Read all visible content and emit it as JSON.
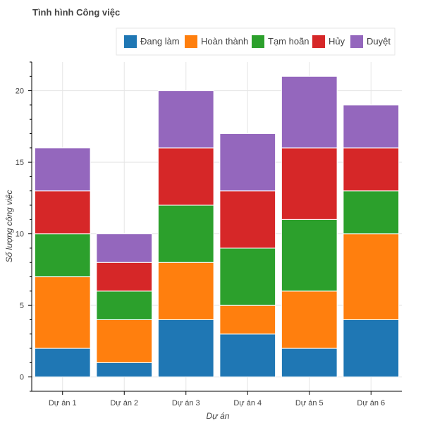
{
  "chart_data": {
    "type": "bar",
    "stacked": true,
    "title": "Tình hình Công việc",
    "xlabel": "Dự án",
    "ylabel": "Số lượng công việc",
    "categories": [
      "Dự án 1",
      "Dự án 2",
      "Dự án 3",
      "Dự án 4",
      "Dự án 5",
      "Dự án 6"
    ],
    "ylim": [
      -1,
      22
    ],
    "yticks": [
      0,
      5,
      10,
      15,
      20
    ],
    "grid": true,
    "legend_position": "top-right",
    "series": [
      {
        "name": "Đang làm",
        "color": "#1f77b4",
        "values": [
          2,
          1,
          4,
          3,
          2,
          4
        ]
      },
      {
        "name": "Hoàn thành",
        "color": "#ff7f0e",
        "values": [
          5,
          3,
          4,
          2,
          4,
          6
        ]
      },
      {
        "name": "Tạm hoãn",
        "color": "#2ca02c",
        "values": [
          3,
          2,
          4,
          4,
          5,
          3
        ]
      },
      {
        "name": "Hủy",
        "color": "#d62728",
        "values": [
          3,
          2,
          4,
          4,
          5,
          3
        ]
      },
      {
        "name": "Duyệt",
        "color": "#9467bd",
        "values": [
          3,
          2,
          4,
          4,
          5,
          3
        ]
      }
    ]
  }
}
